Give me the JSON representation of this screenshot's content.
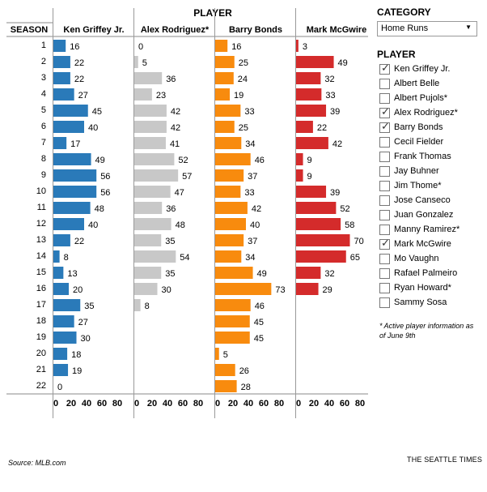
{
  "chart_data": {
    "type": "bar",
    "title": "PLAYER",
    "row_header": "SEASON",
    "categories": [
      "1",
      "2",
      "3",
      "4",
      "5",
      "6",
      "7",
      "8",
      "9",
      "10",
      "11",
      "12",
      "13",
      "14",
      "15",
      "16",
      "17",
      "18",
      "19",
      "20",
      "21",
      "22"
    ],
    "xlim": [
      0,
      80
    ],
    "x_ticks": [
      "0",
      "20",
      "40",
      "60",
      "80"
    ],
    "series": [
      {
        "name": "Ken Griffey Jr.",
        "color": "#2a7ab9",
        "values": [
          16,
          22,
          22,
          27,
          45,
          40,
          17,
          49,
          56,
          56,
          48,
          40,
          22,
          8,
          13,
          20,
          35,
          27,
          30,
          18,
          19,
          0
        ]
      },
      {
        "name": "Alex Rodriguez*",
        "color": "#c8c8c8",
        "values": [
          0,
          5,
          36,
          23,
          42,
          42,
          41,
          52,
          57,
          47,
          36,
          48,
          35,
          54,
          35,
          30,
          8,
          null,
          null,
          null,
          null,
          null
        ]
      },
      {
        "name": "Barry Bonds",
        "color": "#f88b0e",
        "values": [
          16,
          25,
          24,
          19,
          33,
          25,
          34,
          46,
          37,
          33,
          42,
          40,
          37,
          34,
          49,
          73,
          46,
          45,
          45,
          5,
          26,
          28
        ]
      },
      {
        "name": "Mark McGwire",
        "color": "#d42b2b",
        "values": [
          3,
          49,
          32,
          33,
          39,
          22,
          42,
          9,
          9,
          39,
          52,
          58,
          70,
          65,
          32,
          29,
          null,
          null,
          null,
          null,
          null,
          null
        ]
      }
    ]
  },
  "sidebar": {
    "category_title": "CATEGORY",
    "category_selected": "Home Runs",
    "player_title": "PLAYER",
    "players": [
      {
        "name": "Ken Griffey Jr.",
        "checked": true
      },
      {
        "name": "Albert Belle",
        "checked": false
      },
      {
        "name": "Albert Pujols*",
        "checked": false
      },
      {
        "name": "Alex Rodriguez*",
        "checked": true
      },
      {
        "name": "Barry Bonds",
        "checked": true
      },
      {
        "name": "Cecil Fielder",
        "checked": false
      },
      {
        "name": "Frank Thomas",
        "checked": false
      },
      {
        "name": "Jay Buhner",
        "checked": false
      },
      {
        "name": "Jim Thome*",
        "checked": false
      },
      {
        "name": "Jose Canseco",
        "checked": false
      },
      {
        "name": "Juan Gonzalez",
        "checked": false
      },
      {
        "name": "Manny Ramirez*",
        "checked": false
      },
      {
        "name": "Mark McGwire",
        "checked": true
      },
      {
        "name": "Mo Vaughn",
        "checked": false
      },
      {
        "name": "Rafael Palmeiro",
        "checked": false
      },
      {
        "name": "Ryan Howard*",
        "checked": false
      },
      {
        "name": "Sammy Sosa",
        "checked": false
      }
    ],
    "footnote": "* Active player information as of June 9th"
  },
  "footer": {
    "source": "Source: MLB.com",
    "credit": "THE SEATTLE TIMES"
  }
}
